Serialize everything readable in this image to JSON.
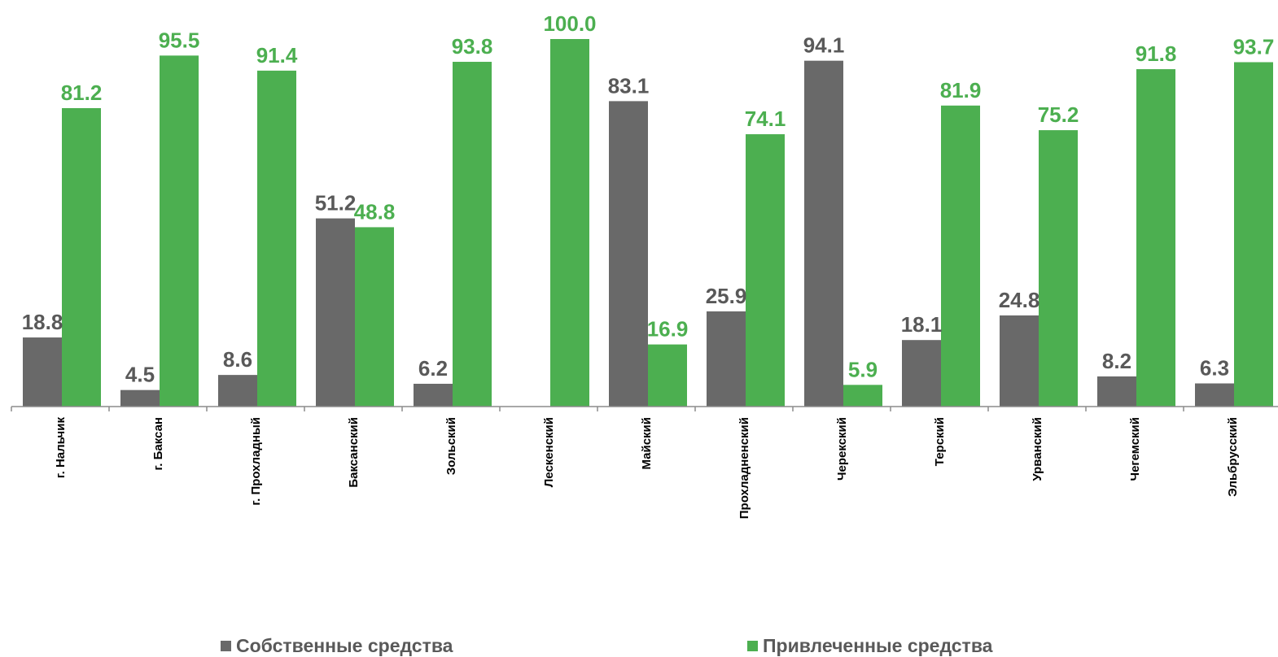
{
  "chart_data": {
    "type": "bar",
    "categories": [
      "г. Нальчик",
      "г. Баксан",
      "г. Прохладный",
      "Баксанский",
      "Зольский",
      "Лескенский",
      "Майский",
      "Прохладненский",
      "Черекский",
      "Терский",
      "Урванский",
      "Чегемский",
      "Эльбрусский"
    ],
    "series": [
      {
        "name": "Собственные средства",
        "color": "#696969",
        "values": [
          18.8,
          4.5,
          8.6,
          51.2,
          6.2,
          null,
          83.1,
          25.9,
          94.1,
          18.1,
          24.8,
          8.2,
          6.3
        ]
      },
      {
        "name": "Привлеченные средства",
        "color": "#4CAF50",
        "values": [
          81.2,
          95.5,
          91.4,
          48.8,
          93.8,
          100.0,
          16.9,
          74.1,
          5.9,
          81.9,
          75.2,
          91.8,
          93.7
        ]
      }
    ],
    "ylim": [
      0,
      100
    ],
    "grid": false,
    "legend": "bottom",
    "label_colors": {
      "own": "#595959",
      "borrowed": "#4CAF50"
    }
  }
}
